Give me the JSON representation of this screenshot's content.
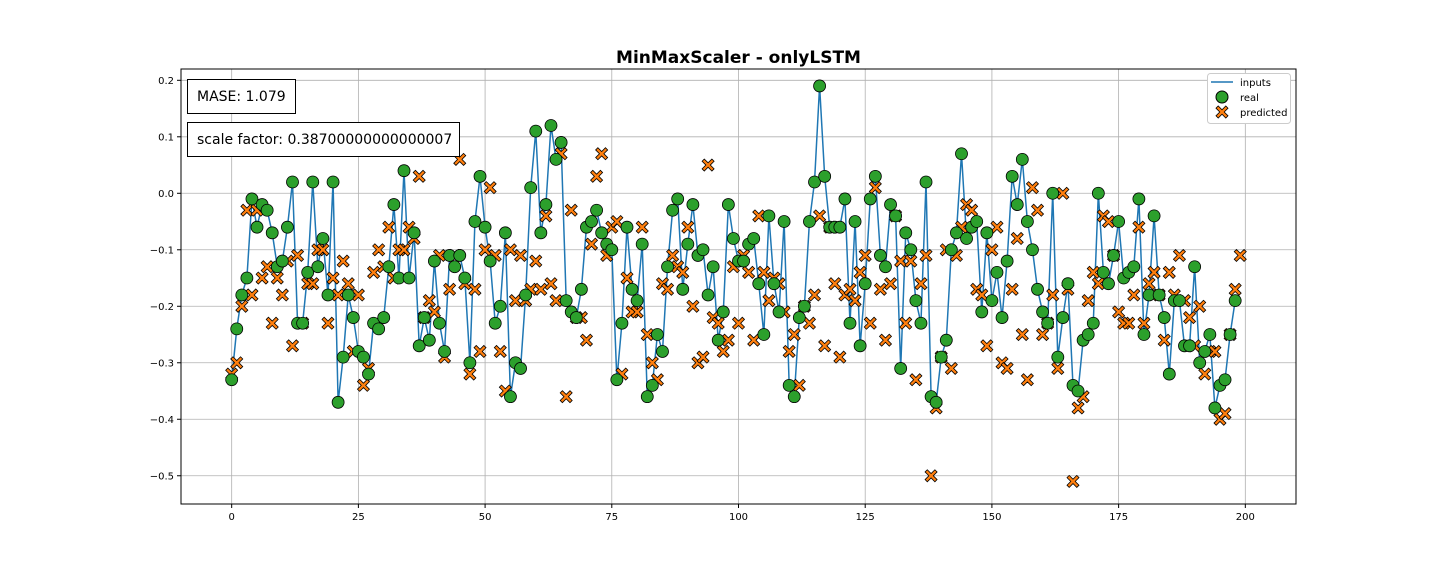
{
  "chart_data": {
    "type": "line",
    "title": "MinMaxScaler - onlyLSTM",
    "xlabel": "",
    "ylabel": "",
    "xlim": [
      -10,
      210
    ],
    "ylim": [
      -0.55,
      0.22
    ],
    "x_ticks": [
      0,
      25,
      50,
      75,
      100,
      125,
      150,
      175,
      200
    ],
    "y_ticks": [
      -0.5,
      -0.4,
      -0.3,
      -0.2,
      -0.1,
      0.0,
      0.1,
      0.2
    ],
    "grid": true,
    "legend_position": "top-right",
    "annotations": [
      {
        "id": "mase",
        "text": "MASE: 1.079"
      },
      {
        "id": "scale",
        "text": "scale factor: 0.38700000000000007"
      }
    ],
    "colors": {
      "inputs": "#1f77b4",
      "real": "#2ca02c",
      "predicted": "#ff7f0e"
    },
    "x_start": 0,
    "series": [
      {
        "name": "inputs",
        "style": "line",
        "values": [
          -0.33,
          -0.24,
          -0.18,
          -0.15,
          -0.01,
          -0.06,
          -0.02,
          -0.03,
          -0.07,
          -0.13,
          -0.12,
          -0.06,
          0.02,
          -0.23,
          -0.23,
          -0.14,
          0.02,
          -0.13,
          -0.08,
          -0.18,
          0.02,
          -0.37,
          -0.29,
          -0.18,
          -0.22,
          -0.28,
          -0.29,
          -0.32,
          -0.23,
          -0.24,
          -0.22,
          -0.13,
          -0.02,
          -0.15,
          0.04,
          -0.15,
          -0.07,
          -0.27,
          -0.22,
          -0.26,
          -0.12,
          -0.23,
          -0.28,
          -0.11,
          -0.13,
          -0.11,
          -0.15,
          -0.3,
          -0.05,
          0.03,
          -0.06,
          -0.12,
          -0.23,
          -0.2,
          -0.07,
          -0.36,
          -0.3,
          -0.31,
          -0.18,
          0.01,
          0.11,
          -0.07,
          -0.02,
          0.12,
          0.06,
          0.09,
          -0.19,
          -0.21,
          -0.22,
          -0.17,
          -0.06,
          -0.05,
          -0.03,
          -0.07,
          -0.09,
          -0.1,
          -0.33,
          -0.23,
          -0.06,
          -0.17,
          -0.19,
          -0.09,
          -0.36,
          -0.34,
          -0.25,
          -0.28,
          -0.13,
          -0.03,
          -0.01,
          -0.17,
          -0.09,
          -0.02,
          -0.11,
          -0.1,
          -0.18,
          -0.13,
          -0.26,
          -0.21,
          -0.02,
          -0.08,
          -0.12,
          -0.12,
          -0.09,
          -0.08,
          -0.16,
          -0.25,
          -0.04,
          -0.16,
          -0.21,
          -0.05,
          -0.34,
          -0.36,
          -0.22,
          -0.2,
          -0.05,
          0.02,
          0.19,
          0.03,
          -0.06,
          -0.06,
          -0.06,
          -0.01,
          -0.23,
          -0.05,
          -0.27,
          -0.16,
          -0.01,
          0.03,
          -0.11,
          -0.13,
          -0.02,
          -0.04,
          -0.31,
          -0.07,
          -0.1,
          -0.19,
          -0.23,
          0.02,
          -0.36,
          -0.37,
          -0.29,
          -0.26,
          -0.1,
          -0.07,
          0.07,
          -0.08,
          -0.06,
          -0.05,
          -0.21,
          -0.07,
          -0.19,
          -0.14,
          -0.22,
          -0.12,
          0.03,
          -0.02,
          0.06,
          -0.05,
          -0.1,
          -0.17,
          -0.21,
          -0.23,
          0.0,
          -0.29,
          -0.22,
          -0.16,
          -0.34,
          -0.35,
          -0.26,
          -0.25,
          -0.23,
          0.0,
          -0.14,
          -0.16,
          -0.11,
          -0.05,
          -0.15,
          -0.14,
          -0.13,
          -0.01,
          -0.25,
          -0.18,
          -0.04,
          -0.18,
          -0.22,
          -0.32,
          -0.19,
          -0.19,
          -0.27,
          -0.27,
          -0.13,
          -0.3,
          -0.28,
          -0.25,
          -0.38,
          -0.34,
          -0.33,
          -0.25,
          -0.19
        ]
      },
      {
        "name": "real",
        "style": "marker-circle",
        "values": [
          -0.33,
          -0.24,
          -0.18,
          -0.15,
          -0.01,
          -0.06,
          -0.02,
          -0.03,
          -0.07,
          -0.13,
          -0.12,
          -0.06,
          0.02,
          -0.23,
          -0.23,
          -0.14,
          0.02,
          -0.13,
          -0.08,
          -0.18,
          0.02,
          -0.37,
          -0.29,
          -0.18,
          -0.22,
          -0.28,
          -0.29,
          -0.32,
          -0.23,
          -0.24,
          -0.22,
          -0.13,
          -0.02,
          -0.15,
          0.04,
          -0.15,
          -0.07,
          -0.27,
          -0.22,
          -0.26,
          -0.12,
          -0.23,
          -0.28,
          -0.11,
          -0.13,
          -0.11,
          -0.15,
          -0.3,
          -0.05,
          0.03,
          -0.06,
          -0.12,
          -0.23,
          -0.2,
          -0.07,
          -0.36,
          -0.3,
          -0.31,
          -0.18,
          0.01,
          0.11,
          -0.07,
          -0.02,
          0.12,
          0.06,
          0.09,
          -0.19,
          -0.21,
          -0.22,
          -0.17,
          -0.06,
          -0.05,
          -0.03,
          -0.07,
          -0.09,
          -0.1,
          -0.33,
          -0.23,
          -0.06,
          -0.17,
          -0.19,
          -0.09,
          -0.36,
          -0.34,
          -0.25,
          -0.28,
          -0.13,
          -0.03,
          -0.01,
          -0.17,
          -0.09,
          -0.02,
          -0.11,
          -0.1,
          -0.18,
          -0.13,
          -0.26,
          -0.21,
          -0.02,
          -0.08,
          -0.12,
          -0.12,
          -0.09,
          -0.08,
          -0.16,
          -0.25,
          -0.04,
          -0.16,
          -0.21,
          -0.05,
          -0.34,
          -0.36,
          -0.22,
          -0.2,
          -0.05,
          0.02,
          0.19,
          0.03,
          -0.06,
          -0.06,
          -0.06,
          -0.01,
          -0.23,
          -0.05,
          -0.27,
          -0.16,
          -0.01,
          0.03,
          -0.11,
          -0.13,
          -0.02,
          -0.04,
          -0.31,
          -0.07,
          -0.1,
          -0.19,
          -0.23,
          0.02,
          -0.36,
          -0.37,
          -0.29,
          -0.26,
          -0.1,
          -0.07,
          0.07,
          -0.08,
          -0.06,
          -0.05,
          -0.21,
          -0.07,
          -0.19,
          -0.14,
          -0.22,
          -0.12,
          0.03,
          -0.02,
          0.06,
          -0.05,
          -0.1,
          -0.17,
          -0.21,
          -0.23,
          0.0,
          -0.29,
          -0.22,
          -0.16,
          -0.34,
          -0.35,
          -0.26,
          -0.25,
          -0.23,
          0.0,
          -0.14,
          -0.16,
          -0.11,
          -0.05,
          -0.15,
          -0.14,
          -0.13,
          -0.01,
          -0.25,
          -0.18,
          -0.04,
          -0.18,
          -0.22,
          -0.32,
          -0.19,
          -0.19,
          -0.27,
          -0.27,
          -0.13,
          -0.3,
          -0.28,
          -0.25,
          -0.38,
          -0.34,
          -0.33,
          -0.25,
          -0.19
        ]
      },
      {
        "name": "predicted",
        "style": "marker-x",
        "values": [
          -0.32,
          -0.3,
          -0.2,
          -0.03,
          -0.18,
          -0.03,
          -0.15,
          -0.13,
          -0.23,
          -0.15,
          -0.18,
          -0.12,
          -0.27,
          -0.11,
          -0.23,
          -0.16,
          -0.16,
          -0.1,
          -0.1,
          -0.23,
          -0.15,
          -0.18,
          -0.12,
          -0.16,
          -0.28,
          -0.18,
          -0.34,
          -0.31,
          -0.14,
          -0.1,
          -0.13,
          -0.06,
          -0.15,
          -0.1,
          -0.1,
          -0.06,
          -0.08,
          0.03,
          -0.22,
          -0.19,
          -0.21,
          -0.11,
          -0.29,
          -0.17,
          -0.11,
          0.06,
          -0.16,
          -0.32,
          -0.17,
          -0.28,
          -0.1,
          0.01,
          -0.11,
          -0.28,
          -0.35,
          -0.1,
          -0.19,
          -0.11,
          -0.19,
          -0.17,
          -0.12,
          -0.17,
          -0.04,
          -0.16,
          -0.19,
          0.07,
          -0.36,
          -0.03,
          -0.22,
          -0.22,
          -0.26,
          -0.09,
          0.03,
          0.07,
          -0.11,
          -0.06,
          -0.05,
          -0.32,
          -0.15,
          -0.21,
          -0.21,
          -0.06,
          -0.25,
          -0.3,
          -0.33,
          -0.16,
          -0.17,
          -0.11,
          -0.13,
          -0.14,
          -0.06,
          -0.2,
          -0.3,
          -0.29,
          0.05,
          -0.22,
          -0.23,
          -0.28,
          -0.26,
          -0.13,
          -0.23,
          -0.11,
          -0.14,
          -0.26,
          -0.04,
          -0.14,
          -0.19,
          -0.15,
          -0.16,
          -0.21,
          -0.28,
          -0.25,
          -0.34,
          -0.2,
          -0.23,
          -0.18,
          -0.04,
          -0.27,
          -0.06,
          -0.16,
          -0.29,
          -0.18,
          -0.17,
          -0.19,
          -0.14,
          -0.11,
          -0.23,
          0.01,
          -0.17,
          -0.26,
          -0.16,
          -0.04,
          -0.12,
          -0.23,
          -0.12,
          -0.33,
          -0.16,
          -0.11,
          -0.5,
          -0.38,
          -0.29,
          -0.1,
          -0.31,
          -0.11,
          -0.06,
          -0.02,
          -0.03,
          -0.17,
          -0.18,
          -0.27,
          -0.1,
          -0.06,
          -0.3,
          -0.31,
          -0.17,
          -0.08,
          -0.25,
          -0.33,
          0.01,
          -0.03,
          -0.25,
          -0.23,
          -0.18,
          -0.31,
          0.0,
          -0.17,
          -0.51,
          -0.38,
          -0.36,
          -0.19,
          -0.14,
          -0.16,
          -0.04,
          -0.05,
          -0.11,
          -0.21,
          -0.23,
          -0.23,
          -0.18,
          -0.06,
          -0.23,
          -0.16,
          -0.14,
          -0.18,
          -0.26,
          -0.14,
          -0.18,
          -0.11,
          -0.19,
          -0.22,
          -0.27,
          -0.2,
          -0.32,
          -0.28,
          -0.28,
          -0.4,
          -0.39,
          -0.25,
          -0.17,
          -0.11
        ]
      }
    ]
  }
}
